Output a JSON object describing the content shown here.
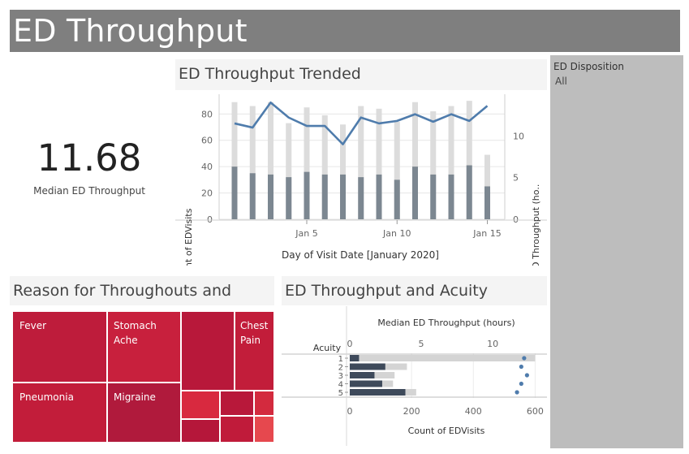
{
  "header": {
    "title": "ED Throughput"
  },
  "kpi": {
    "value": "11.68",
    "label": "Median ED Throughput"
  },
  "filter": {
    "title": "ED Disposition",
    "value": "All"
  },
  "trend": {
    "title": "ED Throughput Trended",
    "xlabel": "Day of Visit Date [January 2020]",
    "ylabel_left": "Count of EDVisits",
    "ylabel_right": "Median ED Throughput (ho..",
    "left_ticks": [
      "0",
      "20",
      "40",
      "60",
      "80"
    ],
    "right_ticks": [
      "0",
      "5",
      "10"
    ],
    "date_ticks": [
      {
        "day": 5,
        "label": "Jan 5"
      },
      {
        "day": 10,
        "label": "Jan 10"
      },
      {
        "day": 15,
        "label": "Jan 15"
      }
    ]
  },
  "treemap": {
    "title": "Reason for Throughouts and Visits",
    "labels": {
      "fever": "Fever",
      "stomach": "Stomach\nAche",
      "chest": "Chest\nPain",
      "pneumonia": "Pneumonia",
      "migraine": "Migraine"
    }
  },
  "acuity": {
    "title": "ED Throughput and Acuity",
    "top_axis_title": "Median ED Throughput (hours)",
    "bottom_axis_title": "Count of EDVisits",
    "row_header": "Acuity",
    "top_ticks": [
      "0",
      "5",
      "10"
    ],
    "bottom_ticks": [
      "0",
      "200",
      "400",
      "600"
    ],
    "rows": [
      "1",
      "2",
      "3",
      "4",
      "5"
    ]
  },
  "chart_data": [
    {
      "type": "bar",
      "title": "ED Throughput Trended",
      "xlabel": "Day of Visit Date [January 2020]",
      "ylabel": "Count of EDVisits",
      "x": [
        1,
        2,
        3,
        4,
        5,
        6,
        7,
        8,
        9,
        10,
        11,
        12,
        13,
        14,
        15
      ],
      "ylim": [
        0,
        95
      ],
      "series": [
        {
          "values": [
            89,
            86,
            89,
            73,
            85,
            79,
            72,
            86,
            84,
            74,
            89,
            82,
            86,
            90,
            49
          ]
        },
        {
          "values": [
            40,
            35,
            34,
            32,
            36,
            34,
            34,
            32,
            34,
            30,
            40,
            34,
            34,
            41,
            25
          ]
        },
        {
          "name": "Median ED Throughput (hours)",
          "axis": "right",
          "line": true,
          "values": [
            11.5,
            11.0,
            14.0,
            12.2,
            11.2,
            11.2,
            9.0,
            12.2,
            11.5,
            11.8,
            12.6,
            11.7,
            12.6,
            11.8,
            13.6
          ]
        }
      ],
      "y2lim": [
        0,
        15
      ]
    },
    {
      "type": "bar",
      "title": "ED Throughput and Acuity",
      "categories": [
        "1",
        "2",
        "3",
        "4",
        "5"
      ],
      "xlabel": "Count of EDVisits",
      "xlim": [
        0,
        620
      ],
      "series": [
        {
          "values": [
            600,
            185,
            145,
            140,
            215
          ]
        },
        {
          "values": [
            30,
            115,
            80,
            105,
            180
          ]
        },
        {
          "name": "Median ED Throughput (hours)",
          "axis": "top",
          "points": true,
          "values": [
            12.2,
            12.0,
            12.4,
            12.0,
            11.7
          ]
        }
      ],
      "x2lim": [
        0,
        13.4
      ]
    }
  ]
}
